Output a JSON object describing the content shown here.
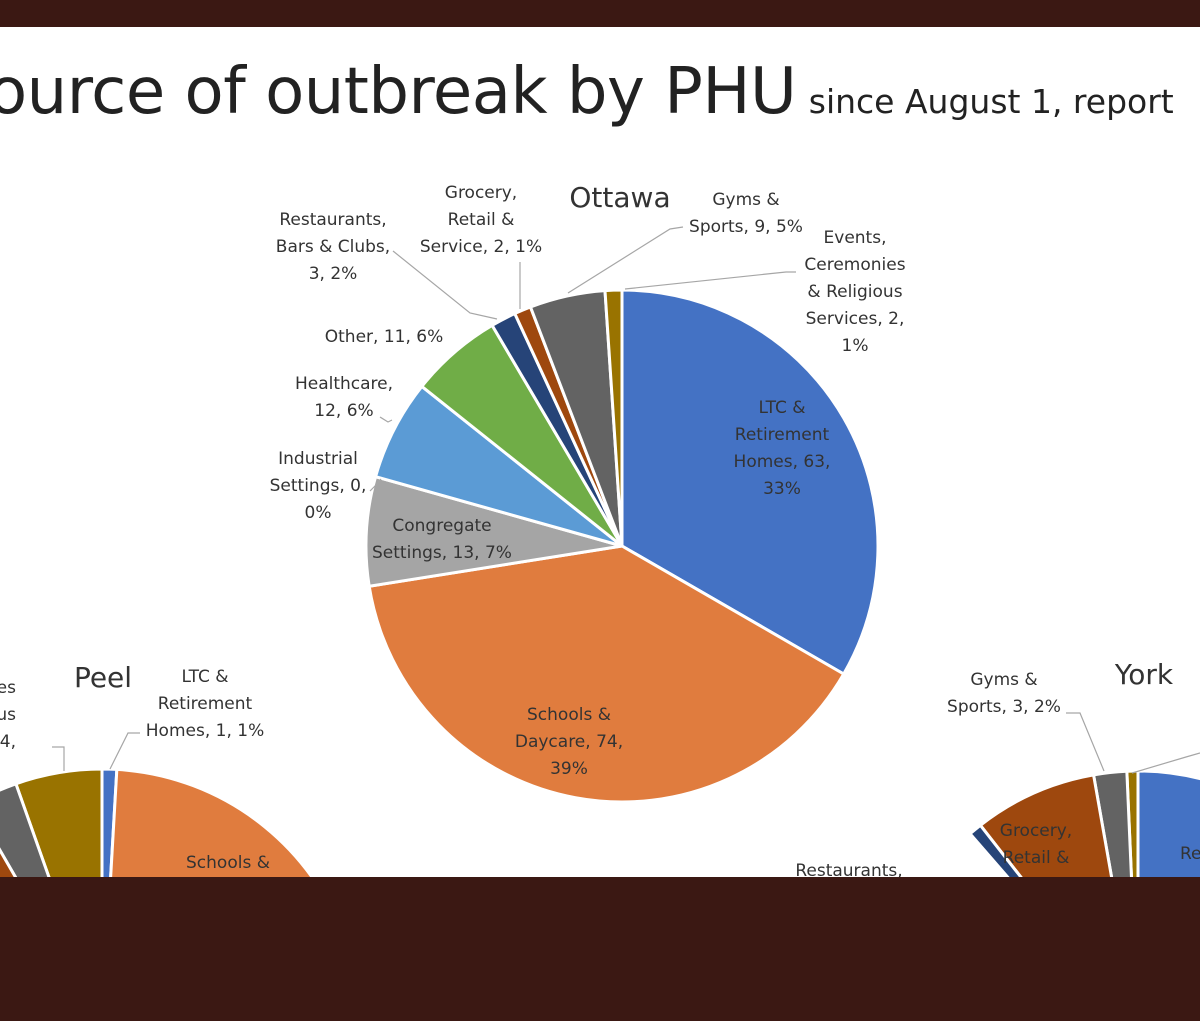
{
  "slide": {
    "title": "ource of outbreak by PHU",
    "subtitle": "since August 1, report"
  },
  "chart_data": [
    {
      "type": "pie",
      "title": "Ottawa",
      "series": [
        {
          "label": "LTC & Retirement Homes",
          "value": 63,
          "pct": "33%",
          "color": "#4472c4"
        },
        {
          "label": "Schools & Daycare",
          "value": 74,
          "pct": "39%",
          "color": "#e07c3e"
        },
        {
          "label": "Congregate Settings",
          "value": 13,
          "pct": "7%",
          "color": "#a5a5a5"
        },
        {
          "label": "Industrial Settings",
          "value": 0,
          "pct": "0%",
          "color": "#ffc000"
        },
        {
          "label": "Healthcare",
          "value": 12,
          "pct": "6%",
          "color": "#5b9bd5"
        },
        {
          "label": "Other",
          "value": 11,
          "pct": "6%",
          "color": "#70ad47"
        },
        {
          "label": "Restaurants, Bars & Clubs",
          "value": 3,
          "pct": "2%",
          "color": "#264478"
        },
        {
          "label": "Grocery, Retail & Service",
          "value": 2,
          "pct": "1%",
          "color": "#9e480e"
        },
        {
          "label": "Gyms & Sports",
          "value": 9,
          "pct": "5%",
          "color": "#636363"
        },
        {
          "label": "Events, Ceremonies & Religious Services",
          "value": 2,
          "pct": "1%",
          "color": "#997300"
        }
      ],
      "data_labels": [
        {
          "lines": [
            "LTC &",
            "Retirement",
            "Homes, 63,",
            "33%"
          ]
        },
        {
          "lines": [
            "Schools &",
            "Daycare, 74,",
            "39%"
          ]
        },
        {
          "lines": [
            "Congregate",
            "Settings, 13, 7%"
          ]
        },
        {
          "lines": [
            "Industrial",
            "Settings, 0,",
            "0%"
          ]
        },
        {
          "lines": [
            "Healthcare,",
            "12, 6%"
          ]
        },
        {
          "lines": [
            "Other, 11, 6%"
          ]
        },
        {
          "lines": [
            "Restaurants,",
            "Bars & Clubs,",
            "3, 2%"
          ]
        },
        {
          "lines": [
            "Grocery,",
            "Retail &",
            "Service, 2, 1%"
          ]
        },
        {
          "lines": [
            "Gyms &",
            "Sports, 9, 5%"
          ]
        },
        {
          "lines": [
            "Events,",
            "Ceremonies",
            "& Religious",
            "Services, 2,",
            "1%"
          ]
        }
      ]
    },
    {
      "type": "pie",
      "title": "Peel",
      "partial": true,
      "visible_slices": [
        {
          "label": "LTC & Retirement Homes",
          "value": 1,
          "pct": "1%",
          "color": "#4472c4"
        },
        {
          "label": "Schools & Daycare",
          "color": "#e07c3e"
        },
        {
          "label": "",
          "color": "#997300"
        },
        {
          "label": "",
          "color": "#636363"
        },
        {
          "label": "",
          "color": "#9e480e"
        }
      ],
      "data_labels": [
        {
          "lines": [
            "LTC &",
            "Retirement",
            "Homes, 1, 1%"
          ]
        },
        {
          "lines": [
            "Schools &"
          ]
        },
        {
          "lines": [
            "es",
            "us",
            "4,"
          ]
        }
      ]
    },
    {
      "type": "pie",
      "title": "York",
      "partial": true,
      "visible_slices": [
        {
          "label": "",
          "color": "#4472c4"
        },
        {
          "label": "",
          "color": "#997300"
        },
        {
          "label": "Gyms & Sports",
          "value": 3,
          "pct": "2%",
          "color": "#636363"
        },
        {
          "label": "Grocery, Retail &",
          "color": "#9e480e"
        },
        {
          "label": "Restaurants,",
          "color": "#264478"
        }
      ],
      "data_labels": [
        {
          "lines": [
            "Gyms &",
            "Sports, 3, 2%"
          ]
        },
        {
          "lines": [
            "Grocery,",
            "Retail &"
          ]
        },
        {
          "lines": [
            "Restaurants,"
          ]
        },
        {
          "lines": [
            "Re"
          ]
        }
      ]
    }
  ]
}
